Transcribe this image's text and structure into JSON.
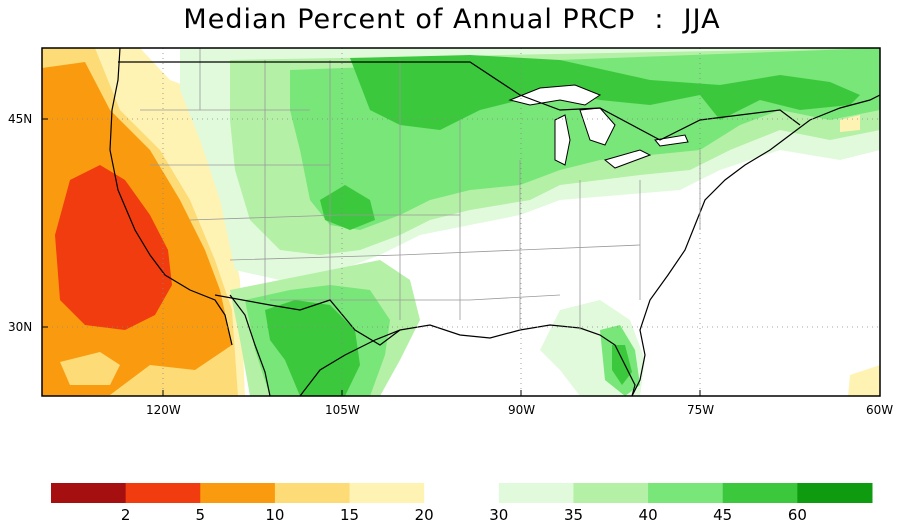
{
  "title": "Median Percent of Annual PRCP  :  JJA",
  "map": {
    "lat_labels": [
      "45N",
      "30N"
    ],
    "lon_labels": [
      "120W",
      "105W",
      "90W",
      "75W",
      "60W"
    ]
  },
  "colorbar": {
    "colors": [
      "#a50f0f",
      "#f03c0f",
      "#fa9b0f",
      "#fddc78",
      "#fff3b4",
      "#ffffff",
      "#e1fadc",
      "#b4f0a5",
      "#78e678",
      "#3cc83c",
      "#0f9b0f"
    ],
    "tick_labels": [
      "2",
      "5",
      "10",
      "15",
      "20",
      "30",
      "35",
      "40",
      "45",
      "60"
    ]
  }
}
